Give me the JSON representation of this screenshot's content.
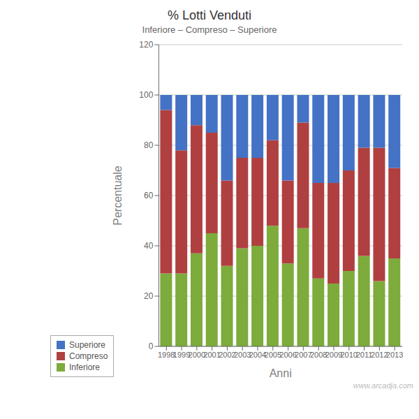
{
  "chart_data": {
    "type": "bar",
    "title": "% Lotti Venduti",
    "subtitle": "Inferiore – Compreso – Superiore",
    "xlabel": "Anni",
    "ylabel": "Percentuale",
    "categories": [
      "1998",
      "1999",
      "2000",
      "2001",
      "2002",
      "2003",
      "2004",
      "2005",
      "2006",
      "2007",
      "2008",
      "2009",
      "2010",
      "2011",
      "2012",
      "2013"
    ],
    "series": [
      {
        "name": "Inferiore",
        "color": "#7dab3c",
        "values": [
          29,
          29,
          37,
          45,
          32,
          39,
          40,
          48,
          33,
          47,
          27,
          25,
          30,
          36,
          26,
          35
        ]
      },
      {
        "name": "Compreso",
        "color": "#b04040",
        "values": [
          65,
          49,
          51,
          40,
          34,
          36,
          35,
          34,
          33,
          42,
          38,
          40,
          40,
          43,
          53,
          36
        ]
      },
      {
        "name": "Superiore",
        "color": "#4472c4",
        "values": [
          6,
          22,
          12,
          15,
          34,
          25,
          25,
          18,
          34,
          11,
          35,
          35,
          30,
          21,
          21,
          29
        ]
      }
    ],
    "stacked": true,
    "ylim": [
      0,
      120
    ],
    "yticks": [
      0,
      20,
      40,
      60,
      80,
      100,
      120
    ],
    "grid": true,
    "legend": "lower left",
    "annotations": [
      "www.arcadja.com"
    ]
  }
}
